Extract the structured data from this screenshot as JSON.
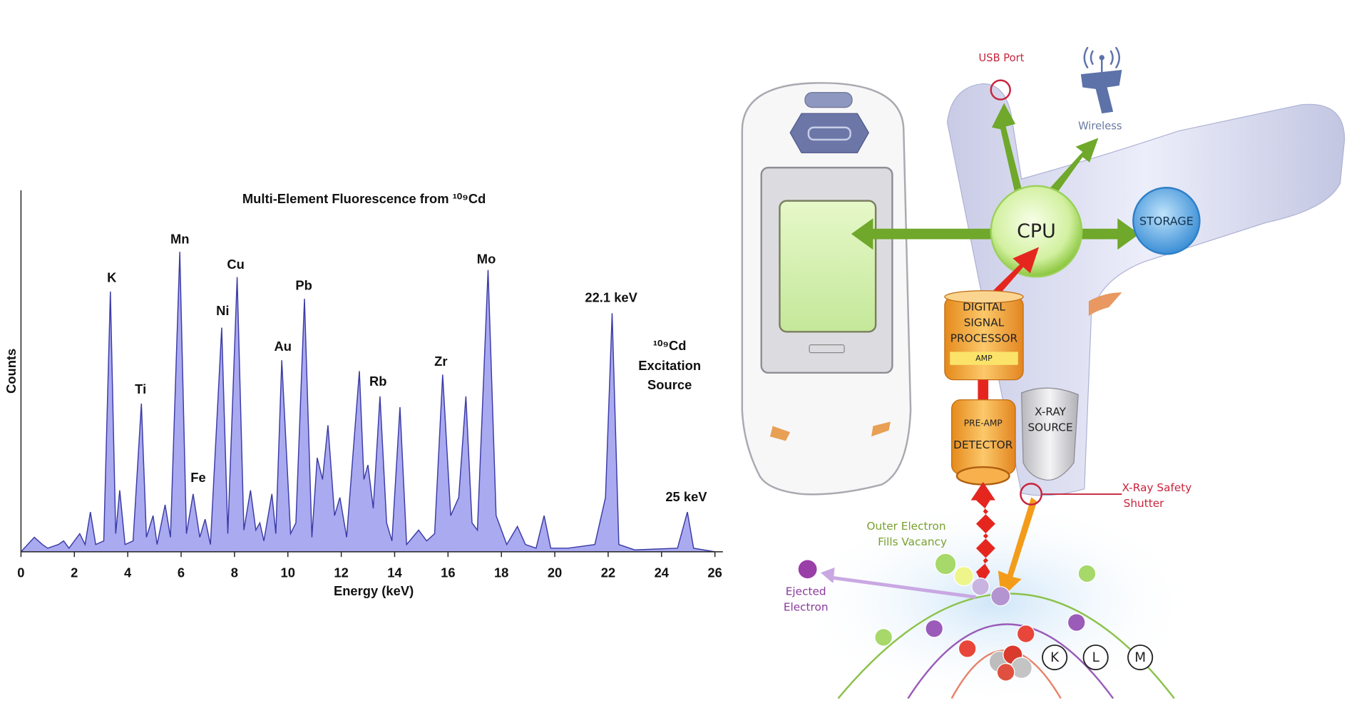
{
  "chart_data": {
    "type": "area",
    "title": "Multi-Element Fluorescence from ¹⁰⁹Cd",
    "x_label": "Energy (keV)",
    "y_label": "Counts",
    "x": [
      0,
      0.5,
      0.8,
      1.0,
      1.4,
      1.6,
      1.8,
      2.2,
      2.4,
      2.6,
      2.8,
      3.1,
      3.35,
      3.55,
      3.7,
      3.9,
      4.2,
      4.51,
      4.7,
      4.95,
      5.1,
      5.4,
      5.6,
      5.95,
      6.2,
      6.45,
      6.7,
      6.9,
      7.1,
      7.52,
      7.75,
      8.1,
      8.35,
      8.6,
      8.8,
      8.95,
      9.1,
      9.4,
      9.55,
      9.77,
      10.1,
      10.3,
      10.62,
      10.9,
      11.1,
      11.3,
      11.5,
      11.75,
      11.95,
      12.2,
      12.68,
      12.85,
      13.0,
      13.2,
      13.45,
      13.7,
      13.9,
      14.2,
      14.45,
      14.9,
      15.2,
      15.5,
      15.8,
      16.1,
      16.4,
      16.67,
      16.9,
      17.1,
      17.5,
      17.8,
      18.2,
      18.6,
      18.9,
      19.3,
      19.6,
      19.85,
      20.5,
      21.5,
      21.9,
      22.15,
      22.4,
      23.0,
      24.6,
      24.97,
      25.2,
      26.0
    ],
    "values": [
      0,
      4,
      2,
      1,
      2,
      3,
      1,
      5,
      2,
      11,
      2,
      3,
      72,
      5,
      17,
      2,
      3,
      41,
      4,
      10,
      2,
      13,
      4,
      83,
      5,
      16,
      4,
      9,
      2,
      62,
      5,
      76,
      6,
      17,
      6,
      8,
      3,
      16,
      5,
      53,
      5,
      8,
      70,
      4,
      26,
      20,
      35,
      10,
      15,
      4,
      50,
      20,
      24,
      12,
      43,
      8,
      3,
      40,
      2,
      6,
      3,
      5,
      49,
      10,
      15,
      43,
      8,
      6,
      78,
      10,
      2,
      7,
      2,
      1,
      10,
      1,
      1,
      2,
      15,
      66,
      2,
      0.5,
      1,
      11,
      1,
      0
    ],
    "color": "#aaaaf0",
    "line_color": "#3c3ca8",
    "xlim": [
      0,
      26.3
    ],
    "ylim": [
      0,
      100
    ],
    "xticks": [
      0,
      2,
      4,
      6,
      8,
      10,
      12,
      14,
      16,
      18,
      20,
      22,
      24,
      26
    ],
    "annotations": [
      "K",
      "Ti",
      "Mn",
      "Fe",
      "Ni",
      "Cu",
      "Au",
      "Pb",
      "Rb",
      "Zr",
      "Mo",
      "22.1 keV",
      "25 keV",
      "¹⁰⁹Cd",
      "Excitation",
      "Source"
    ]
  },
  "diagram": {
    "usb": "USB Port",
    "wireless": "Wireless",
    "cpu": "CPU",
    "storage": "STORAGE",
    "dsp": [
      "DIGITAL",
      "SIGNAL",
      "PROCESSOR"
    ],
    "amp": "AMP",
    "preamp": "PRE-AMP",
    "detector": "DETECTOR",
    "xray_source": [
      "X-RAY",
      "SOURCE"
    ],
    "shutter": [
      "X-Ray Safety",
      "Shutter"
    ],
    "outer": [
      "Outer Electron",
      "Fills Vacancy"
    ],
    "ejected": [
      "Ejected",
      "Electron"
    ],
    "shells": [
      "K",
      "L",
      "M"
    ]
  }
}
